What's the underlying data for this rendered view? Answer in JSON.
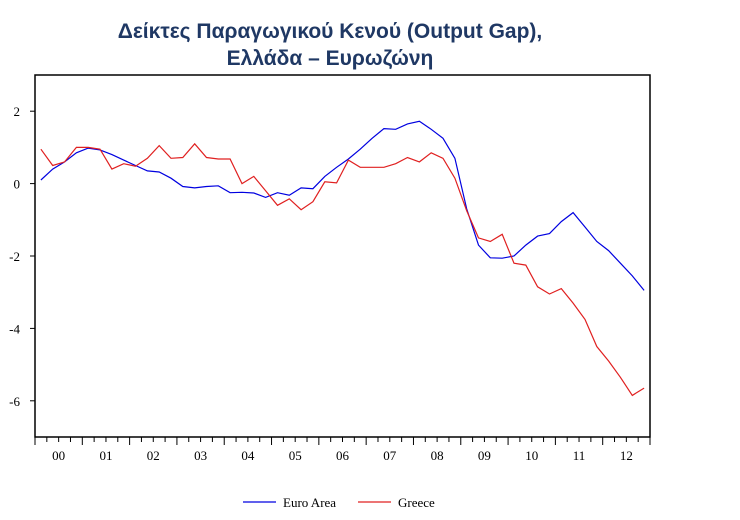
{
  "chart_data": {
    "type": "line",
    "title": [
      "Δείκτες Παραγωγικού Κενού (Output Gap),",
      "Ελλάδα – Ευρωζώνη"
    ],
    "xlabel": "",
    "ylabel": "",
    "frequency": "quarterly",
    "start": "2000Q1",
    "end": "2012Q4",
    "x_tick_labels": [
      "00",
      "01",
      "02",
      "03",
      "04",
      "05",
      "06",
      "07",
      "08",
      "09",
      "10",
      "11",
      "12"
    ],
    "y_ticks": [
      2,
      0,
      -2,
      -4,
      -6
    ],
    "ylim": [
      -7,
      3
    ],
    "legend_position": "bottom",
    "series": [
      {
        "name": "Euro Area",
        "color": "#0000e0",
        "values": [
          0.1,
          0.4,
          0.6,
          0.85,
          0.98,
          0.93,
          0.8,
          0.65,
          0.5,
          0.35,
          0.32,
          0.15,
          -0.08,
          -0.12,
          -0.08,
          -0.06,
          -0.25,
          -0.24,
          -0.26,
          -0.38,
          -0.25,
          -0.32,
          -0.12,
          -0.14,
          0.2,
          0.45,
          0.68,
          0.95,
          1.25,
          1.52,
          1.5,
          1.65,
          1.72,
          1.5,
          1.25,
          0.7,
          -0.7,
          -1.7,
          -2.05,
          -2.06,
          -2.0,
          -1.7,
          -1.45,
          -1.38,
          -1.05,
          -0.8,
          -1.2,
          -1.6,
          -1.85,
          -2.2,
          -2.55,
          -2.95
        ]
      },
      {
        "name": "Greece",
        "color": "#e02020",
        "values": [
          0.95,
          0.5,
          0.6,
          1.0,
          1.0,
          0.95,
          0.4,
          0.55,
          0.48,
          0.7,
          1.05,
          0.7,
          0.72,
          1.1,
          0.72,
          0.68,
          0.68,
          0.0,
          0.2,
          -0.2,
          -0.6,
          -0.42,
          -0.72,
          -0.5,
          0.05,
          0.02,
          0.65,
          0.45,
          0.45,
          0.45,
          0.55,
          0.72,
          0.6,
          0.85,
          0.7,
          0.15,
          -0.75,
          -1.5,
          -1.6,
          -1.4,
          -2.2,
          -2.25,
          -2.85,
          -3.05,
          -2.9,
          -3.3,
          -3.75,
          -4.5,
          -4.9,
          -5.35,
          -5.85,
          -5.65
        ]
      }
    ]
  }
}
